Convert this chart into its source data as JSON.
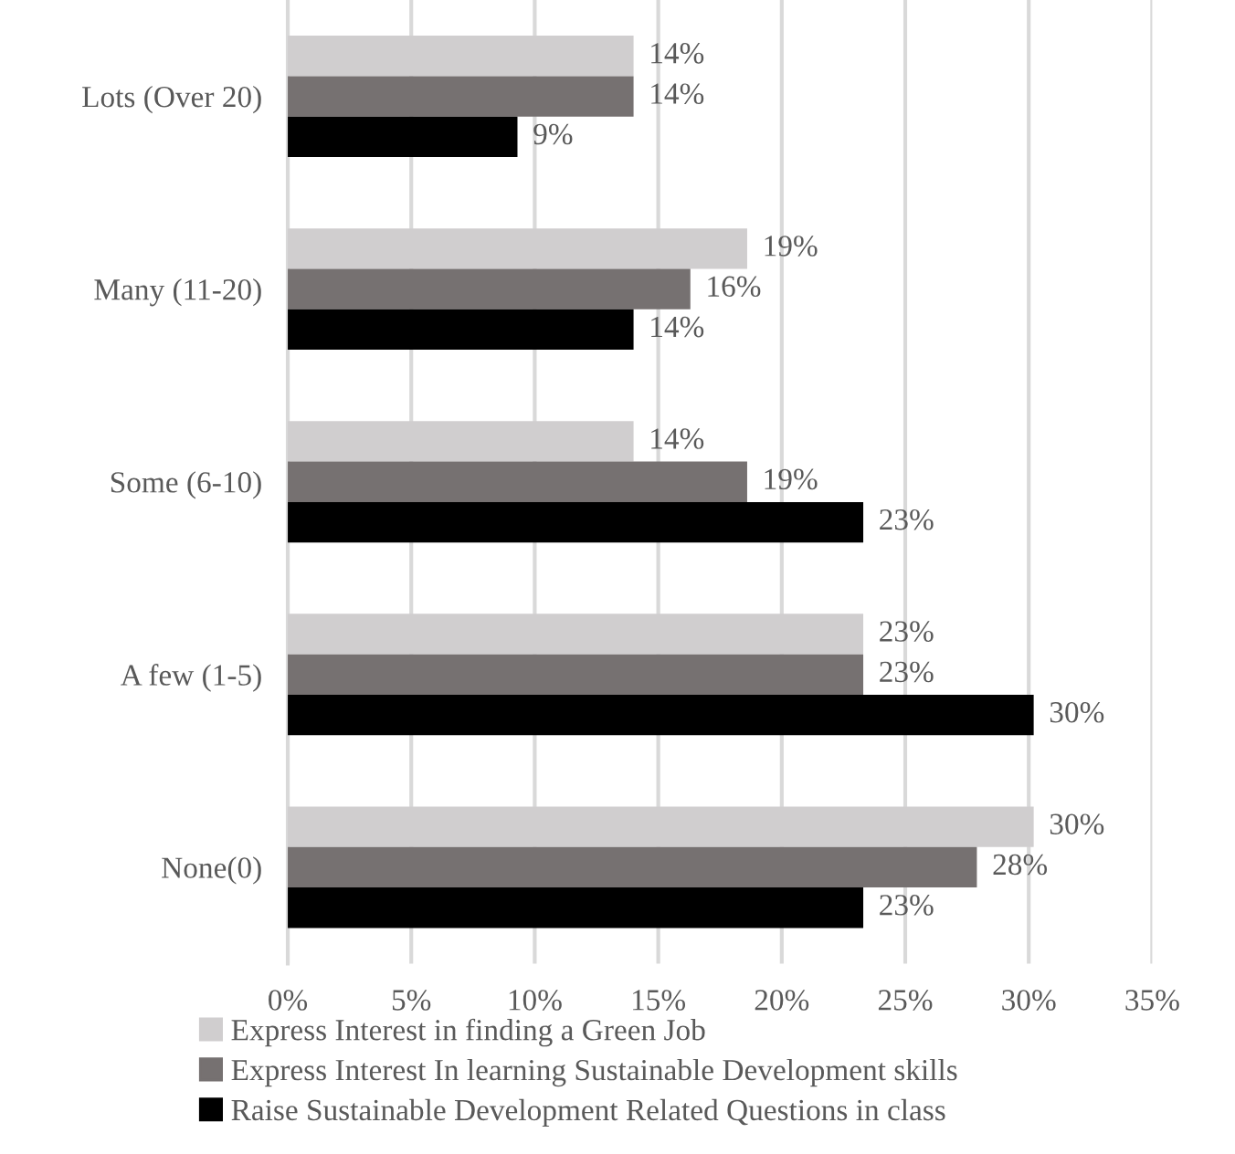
{
  "chart_data": {
    "type": "bar",
    "orientation": "horizontal",
    "categories": [
      "Lots (Over 20)",
      "Many (11-20)",
      "Some (6-10)",
      "A few (1-5)",
      "None(0)"
    ],
    "series": [
      {
        "name": "Express Interest in finding a Green Job",
        "color": "#d0cecf",
        "values": [
          14.0,
          18.6,
          14.0,
          23.3,
          30.2
        ],
        "value_labels": [
          "14%",
          "19%",
          "14%",
          "23%",
          "30%"
        ]
      },
      {
        "name": "Express Interest In learning Sustainable Development skills",
        "color": "#767171",
        "values": [
          14.0,
          16.3,
          18.6,
          23.3,
          27.9
        ],
        "value_labels": [
          "14%",
          "16%",
          "19%",
          "23%",
          "28%"
        ]
      },
      {
        "name": "Raise Sustainable Development Related Questions in class",
        "color": "#000000",
        "values": [
          9.3,
          14.0,
          23.3,
          30.2,
          23.3
        ],
        "value_labels": [
          "9%",
          "14%",
          "23%",
          "30%",
          "23%"
        ]
      }
    ],
    "xlim": [
      0,
      35
    ],
    "xticks": [
      {
        "value": 0,
        "label": "0%"
      },
      {
        "value": 5,
        "label": "5%"
      },
      {
        "value": 10,
        "label": "10%"
      },
      {
        "value": 15,
        "label": "15%"
      },
      {
        "value": 20,
        "label": "20%"
      },
      {
        "value": 25,
        "label": "25%"
      },
      {
        "value": 30,
        "label": "30%"
      },
      {
        "value": 35,
        "label": "35%"
      }
    ],
    "grid": "x",
    "legend": "bottom"
  }
}
